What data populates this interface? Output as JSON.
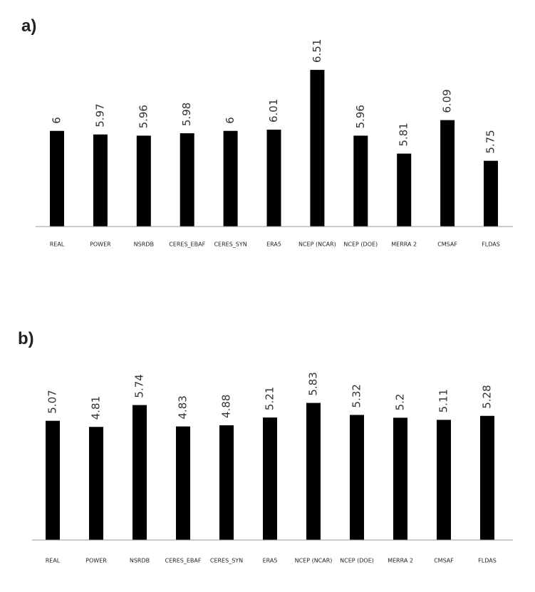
{
  "chart_data": [
    {
      "type": "bar",
      "label": "a)",
      "categories": [
        "REAL",
        "POWER",
        "NSRDB",
        "CERES_EBAF",
        "CERES_SYN",
        "ERA5",
        "NCEP (NCAR)",
        "NCEP (DOE)",
        "MERRA 2",
        "CMSAF",
        "FLDAS"
      ],
      "values": [
        6,
        5.97,
        5.96,
        5.98,
        6,
        6.01,
        6.51,
        5.96,
        5.81,
        6.09,
        5.75
      ],
      "color": "#000000",
      "ylim": [
        5.2,
        6.6
      ]
    },
    {
      "type": "bar",
      "label": "b)",
      "categories": [
        "REAL",
        "POWER",
        "NSRDB",
        "CERES_EBAF",
        "CERES_SYN",
        "ERA5",
        "NCEP (NCAR)",
        "NCEP (DOE)",
        "MERRA 2",
        "CMSAF",
        "FLDAS"
      ],
      "values": [
        5.07,
        4.81,
        5.74,
        4.83,
        4.88,
        5.21,
        5.83,
        5.32,
        5.2,
        5.11,
        5.28
      ],
      "color": "#000000",
      "ylim": [
        0,
        7
      ]
    }
  ]
}
